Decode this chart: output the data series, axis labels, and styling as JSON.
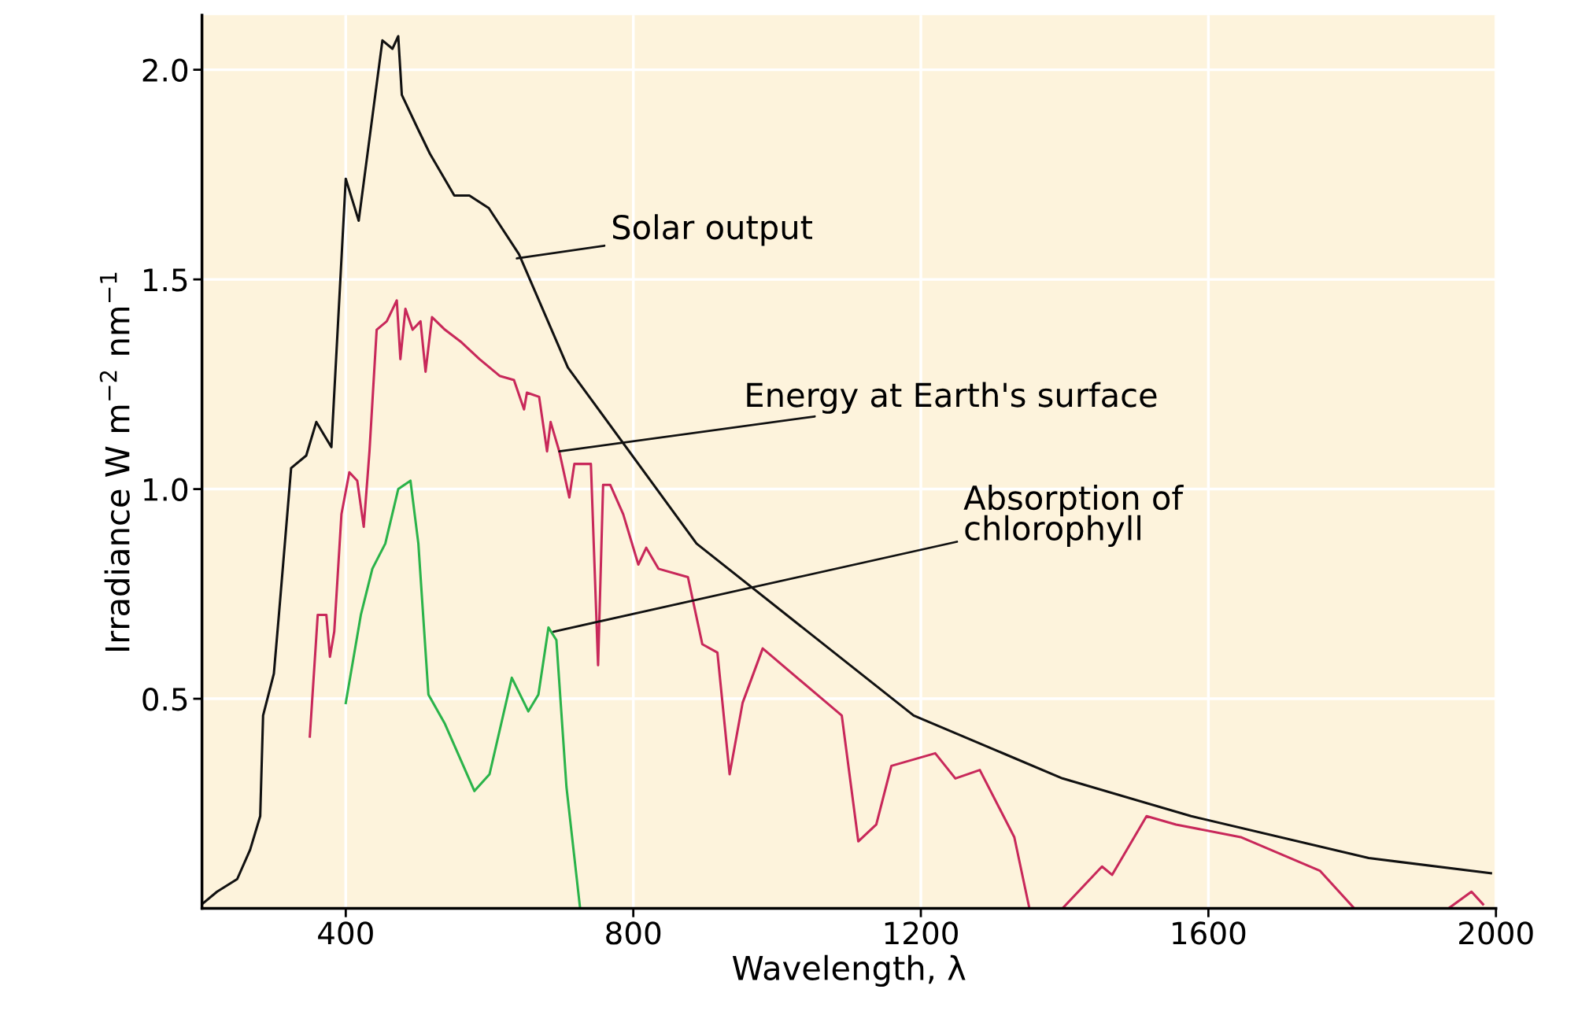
{
  "chart_data": {
    "type": "line",
    "xlabel": "Wavelength, λ",
    "ylabel": "Irradiance W m$^{−2}$ nm$^{−1}$",
    "xlim": [
      200,
      2000
    ],
    "ylim": [
      0,
      2.13
    ],
    "xticks": [
      400,
      800,
      1200,
      1600,
      2000
    ],
    "yticks": [
      0.5,
      {
        "value": 1,
        "label": "1.0"
      },
      1.5,
      {
        "value": 2,
        "label": "2.0"
      }
    ],
    "grid": true,
    "legend": false,
    "series": [
      {
        "color": "#111111",
        "x": [
          200,
          221,
          249,
          267,
          281,
          285,
          300,
          307,
          324,
          345,
          359,
          380,
          400,
          418,
          451,
          465,
          473,
          478,
          500,
          517,
          551,
          572,
          599,
          641,
          709,
          888,
          1190,
          1397,
          1576,
          1823,
          1993
        ],
        "values": [
          0.01,
          0.04,
          0.07,
          0.14,
          0.22,
          0.46,
          0.56,
          0.7,
          1.05,
          1.08,
          1.16,
          1.1,
          1.74,
          1.64,
          2.07,
          2.05,
          2.08,
          1.94,
          1.86,
          1.8,
          1.7,
          1.7,
          1.67,
          1.56,
          1.29,
          0.87,
          0.46,
          0.31,
          0.22,
          0.12,
          0.084
        ]
      },
      {
        "color": "#c8285a",
        "x": [
          350,
          361,
          373,
          378,
          384,
          394,
          405,
          416,
          425,
          433,
          443,
          457,
          471,
          476,
          483,
          493,
          504,
          511,
          520,
          538,
          561,
          586,
          614,
          634,
          648,
          652,
          669,
          680,
          685,
          697,
          711,
          718,
          741,
          751,
          758,
          768,
          786,
          807,
          818,
          835,
          876,
          896,
          917,
          934,
          952,
          980,
          1090,
          1113,
          1138,
          1159,
          1220,
          1248,
          1282,
          1330,
          1351,
          1397,
          1452,
          1466,
          1514,
          1555,
          1645,
          1755,
          1803,
          1934,
          1966,
          1982
        ],
        "values": [
          0.41,
          0.7,
          0.7,
          0.6,
          0.66,
          0.94,
          1.04,
          1.02,
          0.91,
          1.09,
          1.38,
          1.4,
          1.45,
          1.31,
          1.43,
          1.38,
          1.4,
          1.28,
          1.41,
          1.38,
          1.35,
          1.31,
          1.27,
          1.26,
          1.19,
          1.23,
          1.22,
          1.09,
          1.16,
          1.09,
          0.98,
          1.06,
          1.06,
          0.58,
          1.01,
          1.01,
          0.94,
          0.82,
          0.86,
          0.81,
          0.79,
          0.63,
          0.61,
          0.32,
          0.49,
          0.62,
          0.46,
          0.16,
          0.2,
          0.34,
          0.37,
          0.31,
          0.33,
          0.17,
          0,
          0,
          0.1,
          0.08,
          0.22,
          0.2,
          0.17,
          0.09,
          0,
          0,
          0.04,
          0.01
        ]
      },
      {
        "color": "#2bb34a",
        "x": [
          400,
          421,
          437,
          455,
          473,
          490,
          501,
          515,
          538,
          579,
          600,
          631,
          654,
          668,
          682,
          693,
          707,
          726
        ],
        "values": [
          0.49,
          0.7,
          0.81,
          0.87,
          1.0,
          1.02,
          0.87,
          0.51,
          0.44,
          0.28,
          0.32,
          0.55,
          0.47,
          0.51,
          0.67,
          0.64,
          0.29,
          0
        ]
      }
    ],
    "annotations": [
      {
        "text": "Solar output",
        "x": 638,
        "y": 1.55
      },
      {
        "text": "Energy at Earth's surface",
        "x": 697,
        "y": 1.09
      },
      {
        "text": "Absorption of\nchlorophyll",
        "x": 689,
        "y": 0.66
      }
    ]
  }
}
